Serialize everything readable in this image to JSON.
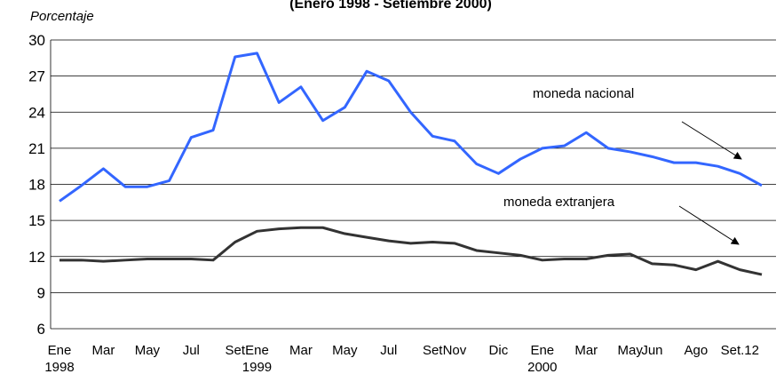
{
  "chart_data": {
    "type": "line",
    "title": "(Enero 1998 - Setiembre 2000)",
    "y_label": "Porcentaje",
    "categories": [
      "Ene",
      null,
      "Mar",
      null,
      "May",
      null,
      "Jul",
      null,
      "Set",
      "Ene",
      null,
      "Mar",
      null,
      "May",
      null,
      "Jul",
      null,
      "Set",
      "Nov",
      null,
      "Dic",
      null,
      "Ene",
      null,
      "Mar",
      null,
      "May",
      "Jun",
      null,
      "Ago",
      null,
      "Set.12",
      null
    ],
    "years": [
      "1998",
      null,
      null,
      null,
      null,
      null,
      null,
      null,
      null,
      "1999",
      null,
      null,
      null,
      null,
      null,
      null,
      null,
      null,
      null,
      null,
      null,
      null,
      "2000",
      null,
      null,
      null,
      null,
      null,
      null,
      null,
      null,
      null,
      null
    ],
    "series": [
      {
        "name": "moneda nacional",
        "color": "#3366ff",
        "values": [
          16.6,
          17.9,
          19.3,
          17.8,
          17.8,
          18.3,
          21.9,
          22.5,
          28.6,
          28.9,
          24.8,
          26.1,
          23.3,
          24.4,
          27.4,
          26.6,
          24.0,
          22.0,
          21.6,
          19.7,
          18.9,
          20.1,
          21.0,
          21.2,
          22.3,
          21.0,
          20.7,
          20.3,
          19.8,
          19.8,
          19.5,
          18.9,
          17.9
        ]
      },
      {
        "name": "moneda extranjera",
        "color": "#333333",
        "values": [
          11.7,
          11.7,
          11.6,
          11.7,
          11.8,
          11.8,
          11.8,
          11.7,
          13.2,
          14.1,
          14.3,
          14.4,
          14.4,
          13.9,
          13.6,
          13.3,
          13.1,
          13.2,
          13.1,
          12.5,
          12.3,
          12.1,
          11.7,
          11.8,
          11.8,
          12.1,
          12.2,
          11.4,
          11.3,
          10.9,
          11.6,
          10.9,
          10.5
        ]
      }
    ],
    "ylim": [
      6,
      30
    ],
    "yticks": [
      6,
      9,
      12,
      15,
      18,
      21,
      24,
      27,
      30
    ],
    "grid": true
  }
}
